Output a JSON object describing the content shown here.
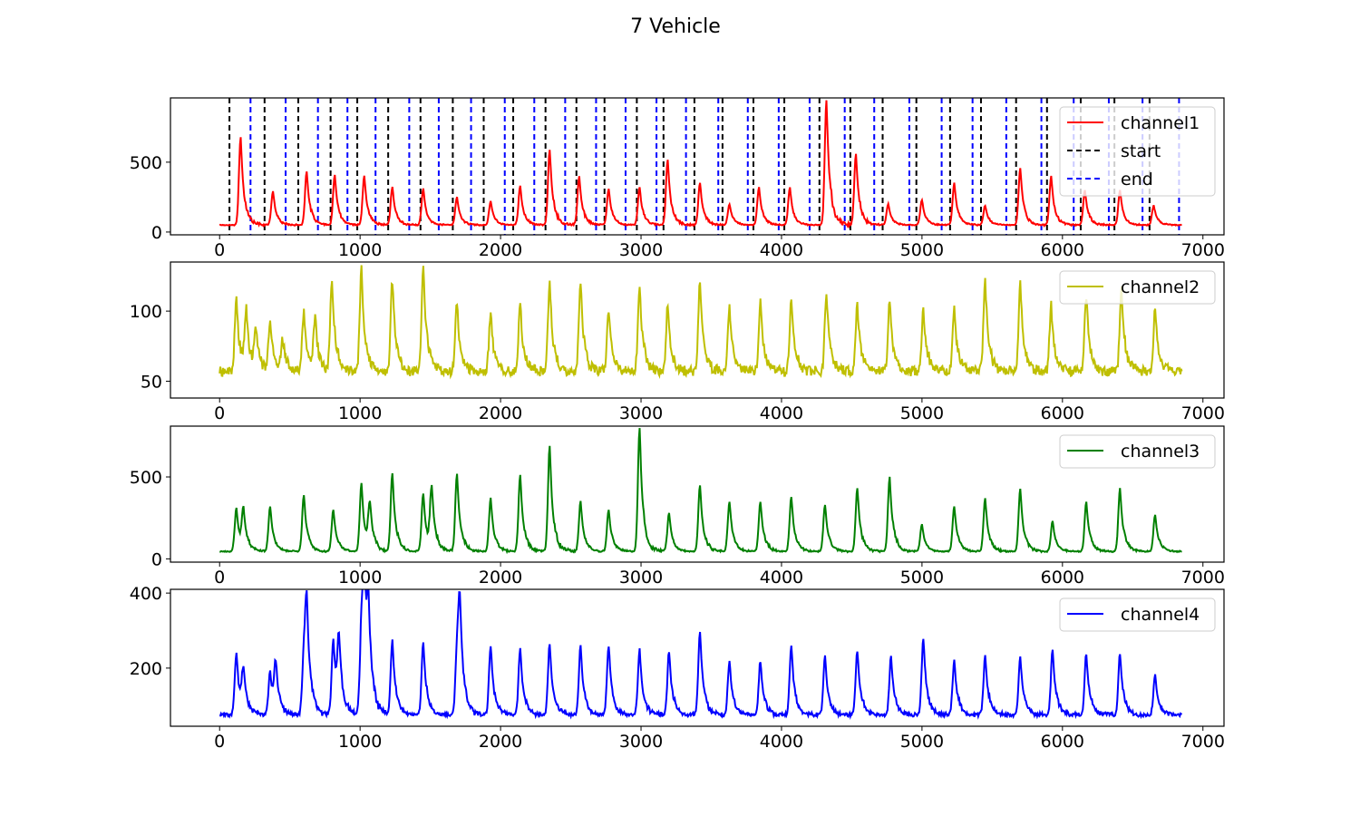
{
  "figure": {
    "title": "7 Vehicle"
  },
  "chart_data": [
    {
      "type": "line",
      "title": "",
      "xlabel": "",
      "ylabel": "",
      "xlim": [
        -350,
        7150
      ],
      "ylim": [
        -20,
        960
      ],
      "xticks": [
        0,
        1000,
        2000,
        3000,
        4000,
        5000,
        6000,
        7000
      ],
      "yticks": [
        0,
        500
      ],
      "grid": false,
      "legend": "top-right",
      "series": [
        {
          "name": "channel1",
          "color": "#ff0000",
          "baseline": 50,
          "peaks": [
            [
              150,
              680
            ],
            [
              380,
              290
            ],
            [
              620,
              430
            ],
            [
              820,
              410
            ],
            [
              1030,
              400
            ],
            [
              1230,
              320
            ],
            [
              1450,
              310
            ],
            [
              1690,
              250
            ],
            [
              1930,
              220
            ],
            [
              2140,
              330
            ],
            [
              2350,
              590
            ],
            [
              2560,
              400
            ],
            [
              2770,
              310
            ],
            [
              2990,
              320
            ],
            [
              3190,
              520
            ],
            [
              3420,
              350
            ],
            [
              3630,
              200
            ],
            [
              3840,
              320
            ],
            [
              4060,
              320
            ],
            [
              4320,
              940
            ],
            [
              4530,
              560
            ],
            [
              4760,
              200
            ],
            [
              5000,
              230
            ],
            [
              5230,
              350
            ],
            [
              5450,
              190
            ],
            [
              5700,
              460
            ],
            [
              5920,
              400
            ],
            [
              6160,
              300
            ],
            [
              6410,
              300
            ],
            [
              6650,
              190
            ]
          ]
        },
        {
          "name": "channel2",
          "color": "#bfbf00",
          "baseline": 57,
          "peaks": [
            [
              120,
              108
            ],
            [
              190,
              98
            ],
            [
              260,
              85
            ],
            [
              360,
              94
            ],
            [
              450,
              78
            ],
            [
              600,
              100
            ],
            [
              680,
              94
            ],
            [
              800,
              124
            ],
            [
              1010,
              130
            ],
            [
              1230,
              122
            ],
            [
              1450,
              132
            ],
            [
              1690,
              106
            ],
            [
              1930,
              98
            ],
            [
              2140,
              105
            ],
            [
              2350,
              122
            ],
            [
              2570,
              121
            ],
            [
              2770,
              100
            ],
            [
              2990,
              118
            ],
            [
              3190,
              103
            ],
            [
              3420,
              122
            ],
            [
              3630,
              102
            ],
            [
              3850,
              106
            ],
            [
              4070,
              106
            ],
            [
              4320,
              114
            ],
            [
              4540,
              105
            ],
            [
              4770,
              108
            ],
            [
              5010,
              101
            ],
            [
              5230,
              102
            ],
            [
              5450,
              121
            ],
            [
              5700,
              119
            ],
            [
              5920,
              104
            ],
            [
              6170,
              111
            ],
            [
              6420,
              117
            ],
            [
              6660,
              101
            ]
          ]
        },
        {
          "name": "channel3",
          "color": "#008000",
          "baseline": 45,
          "peaks": [
            [
              120,
              310
            ],
            [
              170,
              280
            ],
            [
              360,
              320
            ],
            [
              600,
              390
            ],
            [
              810,
              300
            ],
            [
              1010,
              460
            ],
            [
              1070,
              320
            ],
            [
              1230,
              520
            ],
            [
              1450,
              400
            ],
            [
              1510,
              410
            ],
            [
              1690,
              520
            ],
            [
              1930,
              370
            ],
            [
              2140,
              510
            ],
            [
              2350,
              690
            ],
            [
              2570,
              350
            ],
            [
              2770,
              300
            ],
            [
              2990,
              800
            ],
            [
              3200,
              280
            ],
            [
              3420,
              450
            ],
            [
              3630,
              350
            ],
            [
              3850,
              350
            ],
            [
              4070,
              380
            ],
            [
              4310,
              330
            ],
            [
              4540,
              430
            ],
            [
              4770,
              500
            ],
            [
              5000,
              210
            ],
            [
              5230,
              320
            ],
            [
              5450,
              370
            ],
            [
              5700,
              430
            ],
            [
              5930,
              230
            ],
            [
              6170,
              350
            ],
            [
              6410,
              430
            ],
            [
              6660,
              270
            ]
          ]
        },
        {
          "name": "channel4",
          "color": "#0000ff",
          "baseline": 75,
          "peaks": [
            [
              120,
              240
            ],
            [
              170,
              180
            ],
            [
              360,
              190
            ],
            [
              400,
              200
            ],
            [
              600,
              220
            ],
            [
              620,
              345
            ],
            [
              810,
              275
            ],
            [
              850,
              255
            ],
            [
              1010,
              290
            ],
            [
              1030,
              390
            ],
            [
              1060,
              280
            ],
            [
              1230,
              270
            ],
            [
              1450,
              270
            ],
            [
              1690,
              230
            ],
            [
              1710,
              340
            ],
            [
              1930,
              260
            ],
            [
              2140,
              250
            ],
            [
              2350,
              265
            ],
            [
              2570,
              260
            ],
            [
              2770,
              260
            ],
            [
              2990,
              250
            ],
            [
              3200,
              245
            ],
            [
              3420,
              300
            ],
            [
              3630,
              220
            ],
            [
              3850,
              220
            ],
            [
              4070,
              260
            ],
            [
              4310,
              230
            ],
            [
              4540,
              245
            ],
            [
              4780,
              230
            ],
            [
              5010,
              280
            ],
            [
              5230,
              220
            ],
            [
              5450,
              230
            ],
            [
              5700,
              230
            ],
            [
              5930,
              250
            ],
            [
              6170,
              240
            ],
            [
              6410,
              240
            ],
            [
              6660,
              185
            ]
          ]
        }
      ],
      "markers": [
        {
          "name": "start",
          "color": "#000000",
          "dashed": true,
          "x": [
            70,
            320,
            560,
            790,
            980,
            1200,
            1430,
            1660,
            1880,
            2090,
            2320,
            2540,
            2740,
            2970,
            3160,
            3380,
            3580,
            3800,
            4020,
            4270,
            4490,
            4720,
            4960,
            5200,
            5420,
            5670,
            5890,
            6130,
            6370,
            6620
          ]
        },
        {
          "name": "end",
          "color": "#0000ff",
          "dashed": true,
          "x": [
            220,
            470,
            700,
            910,
            1110,
            1350,
            1560,
            1790,
            2030,
            2240,
            2460,
            2680,
            2890,
            3110,
            3320,
            3550,
            3760,
            3980,
            4200,
            4450,
            4660,
            4910,
            5140,
            5360,
            5600,
            5850,
            6080,
            6330,
            6570,
            6830
          ]
        }
      ]
    },
    {
      "type": "line",
      "title": "",
      "xlabel": "",
      "ylabel": "",
      "xlim": [
        -350,
        7150
      ],
      "ylim": [
        38,
        135
      ],
      "xticks": [
        0,
        1000,
        2000,
        3000,
        4000,
        5000,
        6000,
        7000
      ],
      "yticks": [
        50,
        100
      ],
      "grid": false,
      "legend": "top-right",
      "series_index": 1
    },
    {
      "type": "line",
      "title": "",
      "xlabel": "",
      "ylabel": "",
      "xlim": [
        -350,
        7150
      ],
      "ylim": [
        -20,
        810
      ],
      "xticks": [
        0,
        1000,
        2000,
        3000,
        4000,
        5000,
        6000,
        7000
      ],
      "yticks": [
        0,
        500
      ],
      "grid": false,
      "legend": "top-right",
      "series_index": 2
    },
    {
      "type": "line",
      "title": "",
      "xlabel": "",
      "ylabel": "",
      "xlim": [
        -350,
        7150
      ],
      "ylim": [
        45,
        410
      ],
      "xticks": [
        0,
        1000,
        2000,
        3000,
        4000,
        5000,
        6000,
        7000
      ],
      "yticks": [
        200,
        400
      ],
      "grid": false,
      "legend": "top-right",
      "series_index": 3
    }
  ]
}
